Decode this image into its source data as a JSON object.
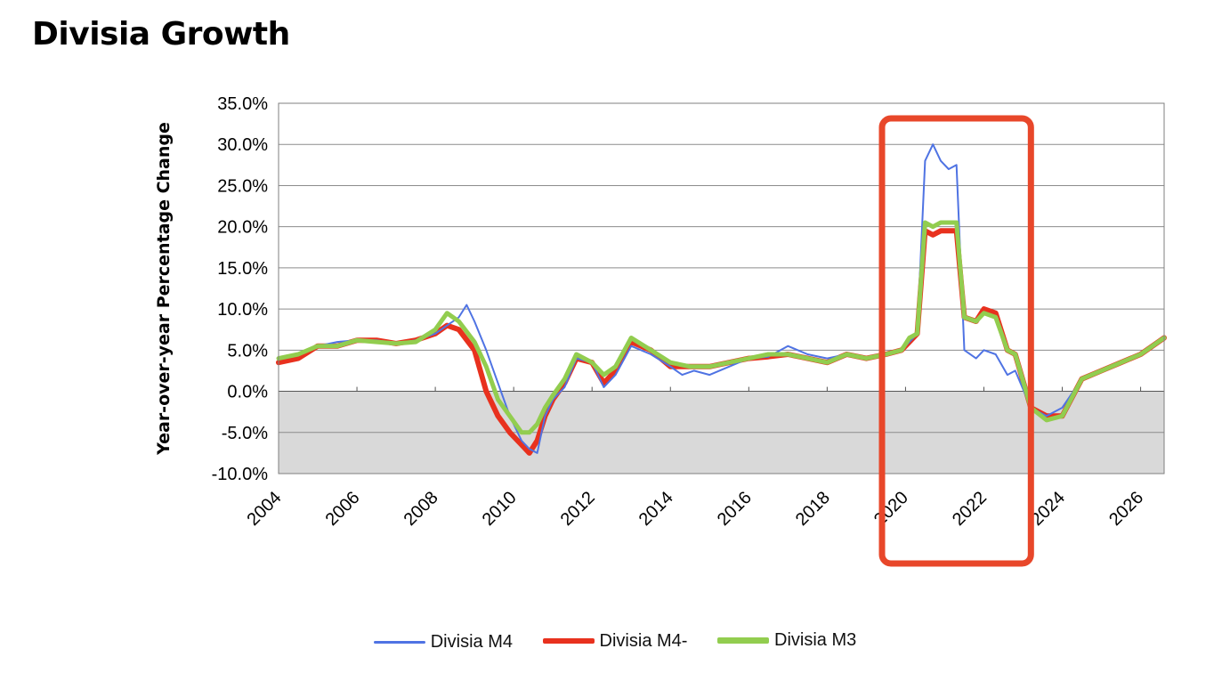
{
  "page": {
    "title": "Divisia Growth"
  },
  "colors": {
    "m4": "#4f73e3",
    "m4minus": "#e8311e",
    "m3": "#92cd4f",
    "highlight": "#e8472a",
    "negative_band": "#d9d9d9"
  },
  "chart_data": {
    "type": "line",
    "title": "",
    "xlabel": "",
    "ylabel": "Year-over-year Percentage Change",
    "ylim": [
      -10,
      35
    ],
    "xlim": [
      2004,
      2026.6
    ],
    "y_ticks": [
      "35.0%",
      "30.0%",
      "25.0%",
      "20.0%",
      "15.0%",
      "10.0%",
      "5.0%",
      "0.0%",
      "-5.0%",
      "-10.0%"
    ],
    "x_ticks": [
      "2004",
      "2006",
      "2008",
      "2010",
      "2012",
      "2014",
      "2016",
      "2018",
      "2020",
      "2022",
      "2024",
      "2026"
    ],
    "grid": "horizontal",
    "negative_region_shaded": true,
    "highlight_box": {
      "x_range": [
        2019.4,
        2023.2
      ],
      "label": ""
    },
    "legend_position": "bottom",
    "series": [
      {
        "name": "Divisia M4",
        "color_key": "m4",
        "x": [
          2004,
          2004.5,
          2005,
          2005.5,
          2006,
          2006.5,
          2007,
          2007.5,
          2008,
          2008.3,
          2008.6,
          2008.8,
          2009,
          2009.3,
          2009.6,
          2009.9,
          2010.2,
          2010.4,
          2010.6,
          2010.8,
          2011,
          2011.3,
          2011.6,
          2012,
          2012.3,
          2012.6,
          2013,
          2013.5,
          2014,
          2014.3,
          2014.6,
          2015,
          2015.5,
          2016,
          2016.5,
          2017,
          2017.5,
          2018,
          2018.5,
          2019,
          2019.5,
          2019.9,
          2020.1,
          2020.3,
          2020.5,
          2020.7,
          2020.9,
          2021.1,
          2021.3,
          2021.5,
          2021.8,
          2022,
          2022.3,
          2022.6,
          2022.8,
          2023.2,
          2023.6,
          2024,
          2024.5,
          2025,
          2025.5,
          2026,
          2026.6
        ],
        "y": [
          4,
          4.5,
          5.5,
          6,
          6.2,
          6.2,
          5.8,
          6.2,
          7,
          8,
          9,
          10.5,
          8.5,
          5,
          1,
          -3,
          -6,
          -7,
          -7.5,
          -3,
          -1,
          0.5,
          4,
          3.5,
          0.5,
          2,
          5.5,
          4.5,
          3,
          2,
          2.5,
          2,
          3,
          4,
          4.2,
          5.5,
          4.5,
          4,
          4.5,
          4,
          4.5,
          5,
          6,
          7,
          28,
          30,
          28,
          27,
          27.5,
          5,
          4,
          5,
          4.5,
          2,
          2.5,
          -2,
          -3,
          -2,
          1.5,
          2.5,
          3.5,
          4.5,
          6.5
        ]
      },
      {
        "name": "Divisia M4-",
        "color_key": "m4minus",
        "x": [
          2004,
          2004.5,
          2005,
          2005.5,
          2006,
          2006.5,
          2007,
          2007.5,
          2008,
          2008.3,
          2008.6,
          2009,
          2009.3,
          2009.6,
          2009.9,
          2010.2,
          2010.4,
          2010.6,
          2010.8,
          2011,
          2011.3,
          2011.6,
          2012,
          2012.3,
          2012.6,
          2013,
          2013.5,
          2014,
          2014.5,
          2015,
          2015.5,
          2016,
          2016.5,
          2017,
          2017.5,
          2018,
          2018.5,
          2019,
          2019.5,
          2019.9,
          2020.1,
          2020.3,
          2020.5,
          2020.7,
          2020.9,
          2021.1,
          2021.3,
          2021.5,
          2021.8,
          2022,
          2022.3,
          2022.6,
          2022.8,
          2023.2,
          2023.6,
          2024,
          2024.5,
          2025,
          2025.5,
          2026,
          2026.6
        ],
        "y": [
          3.5,
          4,
          5.5,
          5.5,
          6.2,
          6.2,
          5.8,
          6.2,
          7,
          8,
          7.5,
          5,
          0,
          -3,
          -5,
          -6.5,
          -7.5,
          -6,
          -3,
          -1,
          1,
          4,
          3.5,
          1,
          2.5,
          6,
          5,
          3,
          3,
          3,
          3.5,
          4,
          4.2,
          4.5,
          4,
          3.5,
          4.5,
          4,
          4.5,
          5,
          6,
          7,
          19.5,
          19,
          19.5,
          19.5,
          19.5,
          9,
          8.5,
          10,
          9.5,
          5,
          4.5,
          -2,
          -3,
          -3,
          1.5,
          2.5,
          3.5,
          4.5,
          6.5
        ]
      },
      {
        "name": "Divisia M3",
        "color_key": "m3",
        "x": [
          2004,
          2004.5,
          2005,
          2005.5,
          2006,
          2006.5,
          2007,
          2007.5,
          2008,
          2008.3,
          2008.6,
          2009,
          2009.3,
          2009.6,
          2009.9,
          2010.2,
          2010.4,
          2010.6,
          2010.8,
          2011,
          2011.3,
          2011.6,
          2012,
          2012.3,
          2012.6,
          2013,
          2013.5,
          2014,
          2014.5,
          2015,
          2015.5,
          2016,
          2016.5,
          2017,
          2017.5,
          2018,
          2018.5,
          2019,
          2019.5,
          2019.9,
          2020.1,
          2020.3,
          2020.5,
          2020.7,
          2020.9,
          2021.1,
          2021.3,
          2021.5,
          2021.8,
          2022,
          2022.3,
          2022.6,
          2022.8,
          2023.2,
          2023.6,
          2024,
          2024.5,
          2025,
          2025.5,
          2026,
          2026.6
        ],
        "y": [
          4,
          4.5,
          5.5,
          5.5,
          6.2,
          6,
          5.8,
          6,
          7.5,
          9.5,
          8.5,
          6,
          3,
          -1,
          -3,
          -5,
          -5,
          -4,
          -2,
          -0.5,
          1.5,
          4.5,
          3.5,
          2,
          3,
          6.5,
          5,
          3.5,
          3,
          3,
          3.5,
          4,
          4.5,
          4.5,
          4,
          3.5,
          4.5,
          4,
          4.5,
          5,
          6.5,
          7,
          20.5,
          20,
          20.5,
          20.5,
          20.5,
          9,
          8.5,
          9.5,
          9,
          5,
          4.5,
          -2,
          -3.5,
          -3,
          1.5,
          2.5,
          3.5,
          4.5,
          6.5
        ]
      }
    ]
  }
}
